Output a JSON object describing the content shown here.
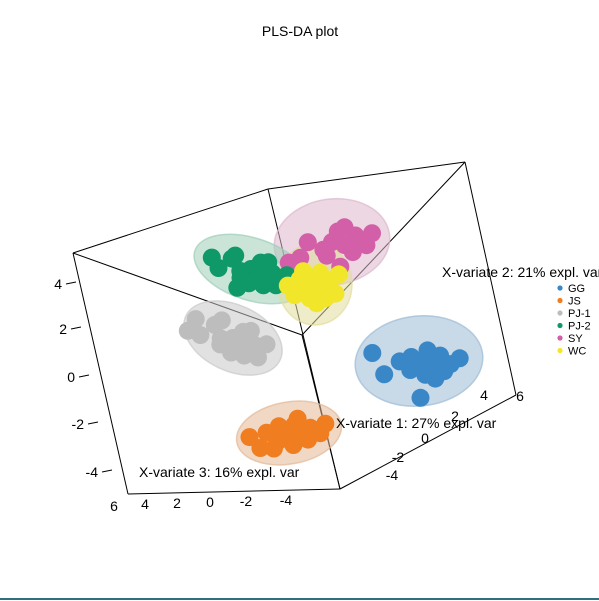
{
  "chart_data": {
    "type": "scatter",
    "title": "PLS-DA plot",
    "axes": {
      "x1": {
        "label": "X-variate 1: 27% expl. var",
        "ticks": [
          "-4",
          "-2",
          "0",
          "2",
          "4",
          "6"
        ]
      },
      "x2": {
        "label": "X-variate 2: 21% expl. var",
        "ticks": [
          "-4",
          "-2",
          "0",
          "2",
          "4",
          "6"
        ]
      },
      "x3": {
        "label": "X-variate 3: 16% expl. var",
        "ticks": [
          "6",
          "4",
          "2",
          "0",
          "-2",
          "-4"
        ]
      },
      "vertical_ticks": [
        "4",
        "2",
        "0",
        "-2",
        "-4"
      ]
    },
    "legend_position": "right",
    "series": [
      {
        "name": "GG",
        "color": "#3a87c8",
        "ellipse_color": "#9bbad6",
        "points": [
          [
            0.0,
            0.0
          ],
          [
            0.5,
            0.3
          ],
          [
            -0.4,
            0.5
          ],
          [
            0.9,
            -0.2
          ],
          [
            -0.8,
            -0.1
          ],
          [
            0.2,
            0.9
          ],
          [
            1.3,
            0.4
          ],
          [
            -1.5,
            0.6
          ],
          [
            0.4,
            -0.6
          ],
          [
            -0.3,
            -0.3
          ],
          [
            1.7,
            0.1
          ],
          [
            -1.9,
            -0.8
          ],
          [
            0.6,
            1.2
          ],
          [
            -0.1,
            2.3
          ],
          [
            1.0,
            0.8
          ],
          [
            0.3,
            0.2
          ]
        ]
      },
      {
        "name": "JS",
        "color": "#f07d1f",
        "ellipse_color": "#e3b896",
        "points": [
          [
            0.0,
            0.0
          ],
          [
            0.5,
            0.3
          ],
          [
            -0.5,
            0.4
          ],
          [
            1.0,
            -0.1
          ],
          [
            -1.0,
            -0.3
          ],
          [
            0.3,
            -0.5
          ],
          [
            -0.4,
            -0.6
          ],
          [
            1.4,
            0.4
          ],
          [
            -1.4,
            0.7
          ],
          [
            0.8,
            0.7
          ],
          [
            -0.8,
            0.9
          ],
          [
            0.1,
            0.9
          ],
          [
            1.7,
            -0.2
          ],
          [
            -1.8,
            -0.2
          ],
          [
            0.5,
            -0.9
          ]
        ]
      },
      {
        "name": "PJ-1",
        "color": "#bdbdbd",
        "ellipse_color": "#c9c9c9",
        "points": [
          [
            0.0,
            0.0
          ],
          [
            0.5,
            0.3
          ],
          [
            -0.5,
            0.4
          ],
          [
            1.0,
            -0.2
          ],
          [
            -1.0,
            -0.3
          ],
          [
            0.3,
            -0.7
          ],
          [
            -0.4,
            0.8
          ],
          [
            1.4,
            0.5
          ],
          [
            -1.4,
            0.8
          ],
          [
            0.8,
            0.8
          ],
          [
            -0.8,
            -0.8
          ],
          [
            0.2,
            1.0
          ],
          [
            1.5,
            -0.6
          ],
          [
            -1.9,
            -0.1
          ],
          [
            0.6,
            -1.0
          ],
          [
            -2.0,
            0.9
          ]
        ]
      },
      {
        "name": "PJ-2",
        "color": "#0f9868",
        "ellipse_color": "#9ecdb8",
        "points": [
          [
            0.0,
            0.0
          ],
          [
            0.4,
            0.3
          ],
          [
            -0.4,
            0.4
          ],
          [
            0.9,
            -0.2
          ],
          [
            -0.9,
            -0.3
          ],
          [
            0.3,
            -0.7
          ],
          [
            -0.3,
            0.9
          ],
          [
            1.2,
            0.6
          ],
          [
            -1.3,
            0.7
          ],
          [
            0.7,
            0.9
          ],
          [
            -0.8,
            -0.6
          ],
          [
            0.1,
            1.1
          ],
          [
            1.5,
            -0.4
          ],
          [
            -1.7,
            0.1
          ],
          [
            0.6,
            -0.9
          ],
          [
            -0.3,
            1.7
          ],
          [
            1.8,
            0.3
          ]
        ]
      },
      {
        "name": "SY",
        "color": "#d25fa7",
        "ellipse_color": "#ddb7cc",
        "points": [
          [
            0.0,
            0.0
          ],
          [
            0.5,
            0.3
          ],
          [
            -0.4,
            0.4
          ],
          [
            1.0,
            -0.2
          ],
          [
            -1.0,
            -0.2
          ],
          [
            0.3,
            -0.6
          ],
          [
            -0.3,
            0.8
          ],
          [
            1.4,
            0.5
          ],
          [
            -1.4,
            0.7
          ],
          [
            0.8,
            0.8
          ],
          [
            0.2,
            1.6
          ],
          [
            1.7,
            -0.2
          ],
          [
            -1.9,
            0.9
          ],
          [
            0.6,
            -0.8
          ]
        ]
      },
      {
        "name": "WC",
        "color": "#f2e62a",
        "ellipse_color": "#e2dc9c",
        "points": [
          [
            0.0,
            0.0
          ],
          [
            0.5,
            0.3
          ],
          [
            -0.4,
            0.4
          ],
          [
            0.9,
            -0.2
          ],
          [
            -0.9,
            -0.3
          ],
          [
            0.3,
            -0.7
          ],
          [
            -0.3,
            0.9
          ],
          [
            1.2,
            0.6
          ],
          [
            -1.2,
            0.7
          ],
          [
            0.6,
            0.9
          ],
          [
            -0.7,
            -0.8
          ],
          [
            0.1,
            1.2
          ],
          [
            1.4,
            -0.6
          ],
          [
            -1.6,
            0.1
          ]
        ]
      }
    ]
  }
}
